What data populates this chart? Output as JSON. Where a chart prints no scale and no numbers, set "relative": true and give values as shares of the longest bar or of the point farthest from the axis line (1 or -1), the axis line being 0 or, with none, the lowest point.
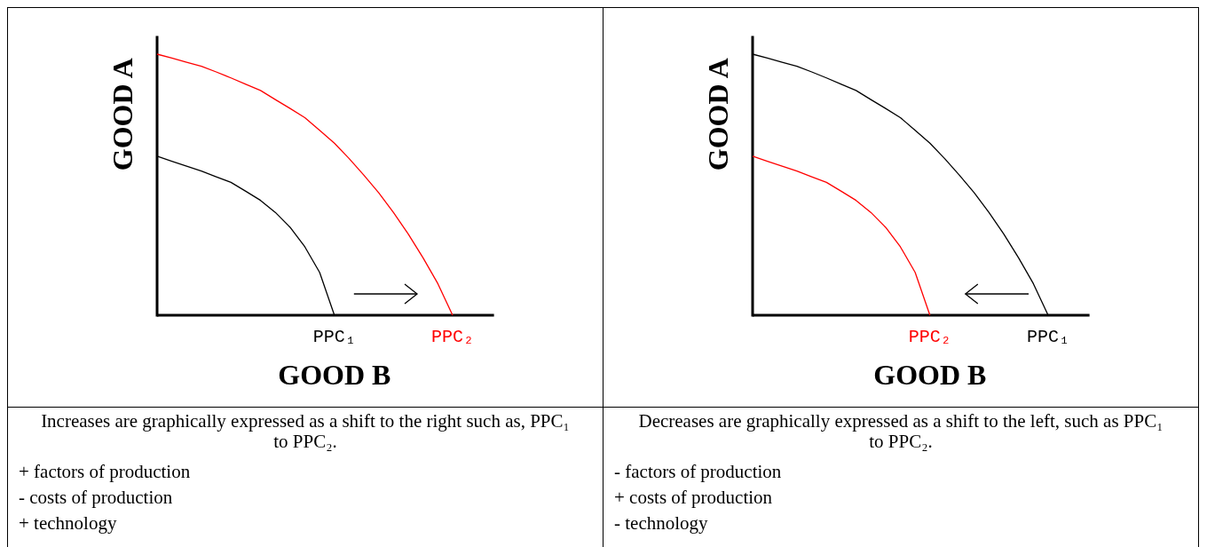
{
  "chart_data": [
    {
      "type": "line",
      "relative": true,
      "xlabel": "GOOD B",
      "ylabel": "GOOD A",
      "categories": [
        null,
        null,
        null,
        null,
        null,
        null,
        null,
        null,
        null,
        null,
        null,
        null,
        null,
        null,
        null,
        null,
        null,
        null,
        null,
        null,
        null
      ],
      "series": [
        {
          "name": "PPC₁",
          "color": "#000000",
          "values": [
            0.609,
            0.59,
            0.571,
            0.552,
            0.53,
            0.509,
            0.475,
            0.44,
            0.394,
            0.337,
            0.262,
            0.164,
            0,
            null,
            null,
            null,
            null,
            null,
            null,
            null,
            null
          ]
        },
        {
          "name": "PPC₂",
          "color": "#ff0000",
          "values": [
            1,
            0.985,
            0.969,
            0.954,
            0.932,
            0.909,
            0.885,
            0.861,
            0.826,
            0.792,
            0.757,
            0.708,
            0.659,
            0.6,
            0.536,
            0.469,
            0.393,
            0.311,
            0.22,
            0.121,
            0
          ]
        }
      ],
      "annotations": [
        "Increases are graphically expressed as a shift to the right such as, PPC₁ to PPC₂.",
        "+ factors of production",
        "- costs of production",
        "+ technology"
      ]
    },
    {
      "type": "line",
      "relative": true,
      "xlabel": "GOOD B",
      "ylabel": "GOOD A",
      "categories": [
        null,
        null,
        null,
        null,
        null,
        null,
        null,
        null,
        null,
        null,
        null,
        null,
        null,
        null,
        null,
        null,
        null,
        null,
        null,
        null,
        null
      ],
      "series": [
        {
          "name": "PPC₁",
          "color": "#000000",
          "values": [
            1,
            0.985,
            0.969,
            0.954,
            0.932,
            0.909,
            0.885,
            0.861,
            0.826,
            0.792,
            0.757,
            0.708,
            0.659,
            0.6,
            0.536,
            0.469,
            0.393,
            0.311,
            0.22,
            0.121,
            0
          ]
        },
        {
          "name": "PPC₂",
          "color": "#ff0000",
          "values": [
            0.609,
            0.59,
            0.571,
            0.552,
            0.53,
            0.509,
            0.475,
            0.44,
            0.394,
            0.337,
            0.262,
            0.164,
            0,
            null,
            null,
            null,
            null,
            null,
            null,
            null,
            null
          ]
        }
      ],
      "annotations": [
        "Decreases are graphically expressed as a shift to the left, such as PPC₁ to PPC₂.",
        "- factors of production",
        "+ costs of production",
        "- technology"
      ]
    }
  ]
}
